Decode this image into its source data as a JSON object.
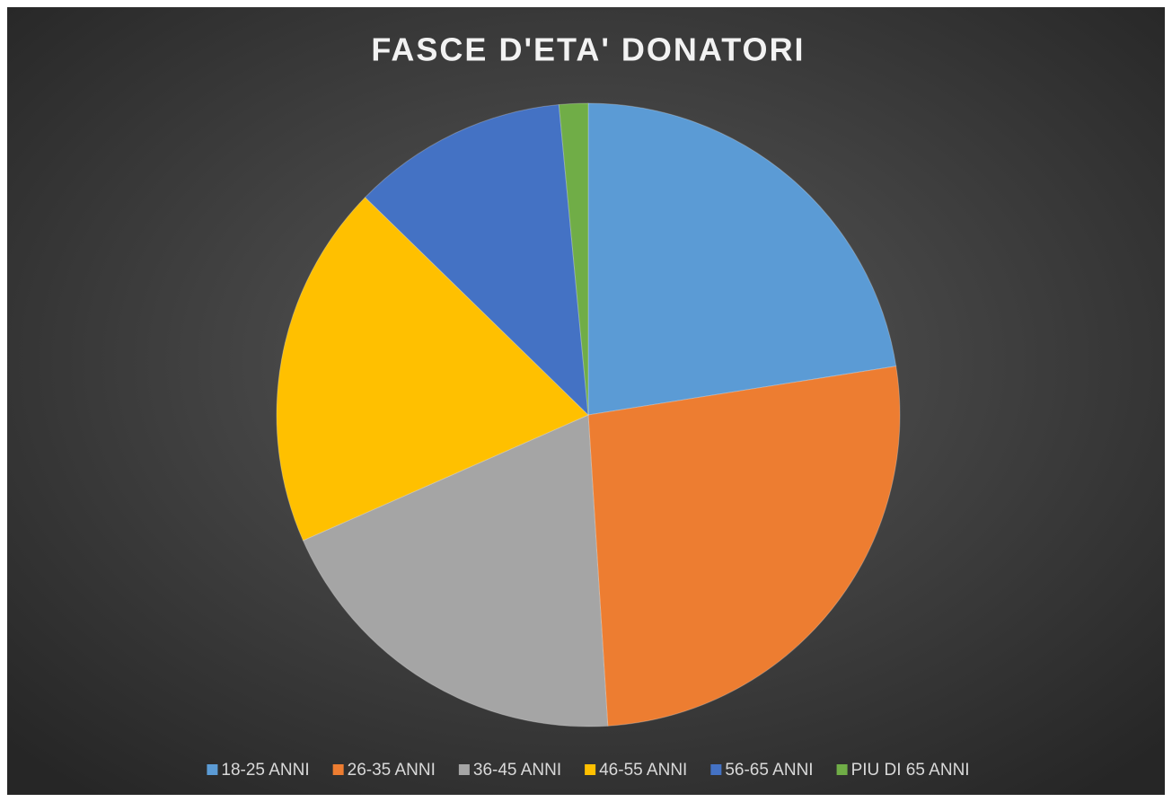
{
  "chart_data": {
    "type": "pie",
    "title": "FASCE D'ETA' DONATORI",
    "categories": [
      "18-25 ANNI",
      "26-35 ANNI",
      "36-45 ANNI",
      "46-55 ANNI",
      "56-65 ANNI",
      "PIU DI 65 ANNI"
    ],
    "values": [
      22.5,
      26.5,
      19.4,
      18.9,
      11.2,
      1.5
    ],
    "colors": [
      "#5b9bd5",
      "#ed7d31",
      "#a5a5a5",
      "#ffc000",
      "#4472c4",
      "#70ad47"
    ],
    "legend": "bottom"
  }
}
